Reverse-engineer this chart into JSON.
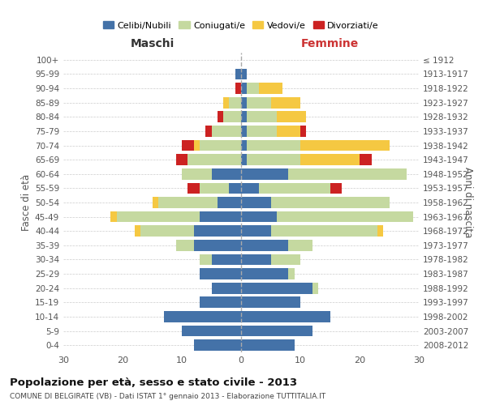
{
  "age_groups": [
    "0-4",
    "5-9",
    "10-14",
    "15-19",
    "20-24",
    "25-29",
    "30-34",
    "35-39",
    "40-44",
    "45-49",
    "50-54",
    "55-59",
    "60-64",
    "65-69",
    "70-74",
    "75-79",
    "80-84",
    "85-89",
    "90-94",
    "95-99",
    "100+"
  ],
  "birth_years": [
    "2008-2012",
    "2003-2007",
    "1998-2002",
    "1993-1997",
    "1988-1992",
    "1983-1987",
    "1978-1982",
    "1973-1977",
    "1968-1972",
    "1963-1967",
    "1958-1962",
    "1953-1957",
    "1948-1952",
    "1943-1947",
    "1938-1942",
    "1933-1937",
    "1928-1932",
    "1923-1927",
    "1918-1922",
    "1913-1917",
    "≤ 1912"
  ],
  "colors": {
    "celibi": "#4472a8",
    "coniugati": "#c5d9a0",
    "vedovi": "#f5c842",
    "divorziati": "#cc2222"
  },
  "male": {
    "celibi": [
      8,
      10,
      13,
      7,
      5,
      7,
      5,
      8,
      8,
      7,
      4,
      2,
      5,
      0,
      0,
      0,
      0,
      0,
      0,
      1,
      0
    ],
    "coniugati": [
      0,
      0,
      0,
      0,
      0,
      0,
      2,
      3,
      9,
      14,
      10,
      5,
      5,
      9,
      7,
      5,
      3,
      2,
      0,
      0,
      0
    ],
    "vedovi": [
      0,
      0,
      0,
      0,
      0,
      0,
      0,
      0,
      1,
      1,
      1,
      0,
      0,
      0,
      1,
      0,
      0,
      1,
      0,
      0,
      0
    ],
    "divorziati": [
      0,
      0,
      0,
      0,
      0,
      0,
      0,
      0,
      0,
      0,
      0,
      2,
      0,
      2,
      2,
      1,
      1,
      0,
      1,
      0,
      0
    ]
  },
  "female": {
    "celibi": [
      9,
      12,
      15,
      10,
      12,
      8,
      5,
      8,
      5,
      6,
      5,
      3,
      8,
      1,
      1,
      1,
      1,
      1,
      1,
      1,
      0
    ],
    "coniugati": [
      0,
      0,
      0,
      0,
      1,
      1,
      5,
      4,
      18,
      23,
      20,
      12,
      20,
      9,
      9,
      5,
      5,
      4,
      2,
      0,
      0
    ],
    "vedovi": [
      0,
      0,
      0,
      0,
      0,
      0,
      0,
      0,
      1,
      0,
      0,
      0,
      0,
      10,
      15,
      4,
      5,
      5,
      4,
      0,
      0
    ],
    "divorziati": [
      0,
      0,
      0,
      0,
      0,
      0,
      0,
      0,
      0,
      0,
      0,
      2,
      0,
      2,
      0,
      1,
      0,
      0,
      0,
      0,
      0
    ]
  },
  "xlim": 30,
  "title": "Popolazione per età, sesso e stato civile - 2013",
  "subtitle": "COMUNE DI BELGIRATE (VB) - Dati ISTAT 1° gennaio 2013 - Elaborazione TUTTITALIA.IT",
  "xlabel_left": "Maschi",
  "xlabel_right": "Femmine",
  "ylabel_left": "Fasce di età",
  "ylabel_right": "Anni di nascita",
  "legend_labels": [
    "Celibi/Nubili",
    "Coniugati/e",
    "Vedovi/e",
    "Divorziati/e"
  ]
}
